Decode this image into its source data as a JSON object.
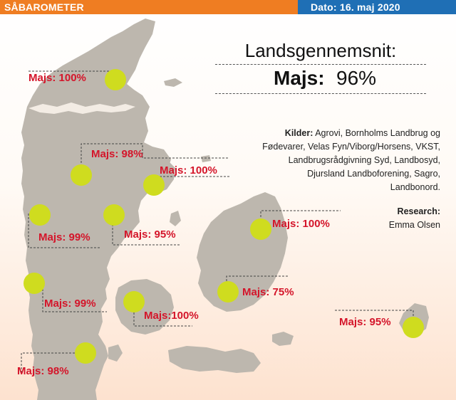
{
  "header": {
    "title": "SÅBAROMETER",
    "date": "Dato: 16. maj 2020"
  },
  "national": {
    "title": "Landsgennemsnit:",
    "crop": "Majs:",
    "value": "96%"
  },
  "sources": {
    "label": "Kilder:",
    "text": "Agrovi, Bornholms Landbrug og Fødevarer, Velas Fyn/Viborg/Horsens, VKST, Landbrugsrådgivning Syd, Landbosyd, Djursland Landboforening, Sagro, Landbonord."
  },
  "research": {
    "label": "Research:",
    "name": "Emma Olsen"
  },
  "regions": [
    {
      "label": "Majs: 100%"
    },
    {
      "label": "Majs: 98%"
    },
    {
      "label": "Majs: 100%"
    },
    {
      "label": "Majs: 99%"
    },
    {
      "label": "Majs: 95%"
    },
    {
      "label": "Majs: 100%"
    },
    {
      "label": "Majs: 99%"
    },
    {
      "label": "Majs:100%"
    },
    {
      "label": "Majs: 75%"
    },
    {
      "label": "Majs: 98%"
    },
    {
      "label": "Majs: 95%"
    }
  ],
  "colors": {
    "land": "#bdb7ae",
    "marker": "#cfdc1f",
    "label_red": "#d4152a",
    "header_orange": "#ef7d22",
    "header_blue": "#1f6fb5"
  }
}
